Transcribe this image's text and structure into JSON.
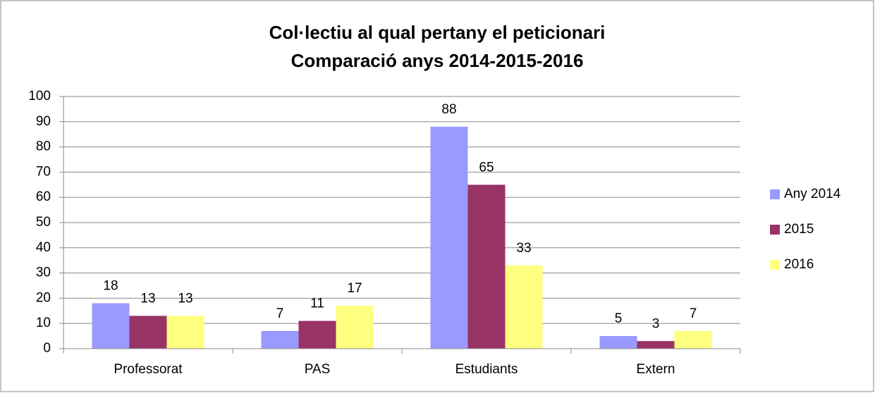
{
  "chart_data": {
    "type": "bar",
    "title": "Col·lectiu al qual pertany el peticionari",
    "subtitle": "Comparació anys 2014-2015-2016",
    "categories": [
      "Professorat",
      "PAS",
      "Estudiants",
      "Extern"
    ],
    "series": [
      {
        "name": "Any 2014",
        "color": "#9999ff",
        "values": [
          18,
          7,
          88,
          5
        ]
      },
      {
        "name": "2015",
        "color": "#993366",
        "values": [
          13,
          11,
          65,
          3
        ]
      },
      {
        "name": "2016",
        "color": "#ffff80",
        "values": [
          13,
          17,
          33,
          7
        ]
      }
    ],
    "ylim": [
      0,
      100
    ],
    "yticks": [
      0,
      10,
      20,
      30,
      40,
      50,
      60,
      70,
      80,
      90,
      100
    ],
    "grid": true,
    "legend": "right"
  }
}
